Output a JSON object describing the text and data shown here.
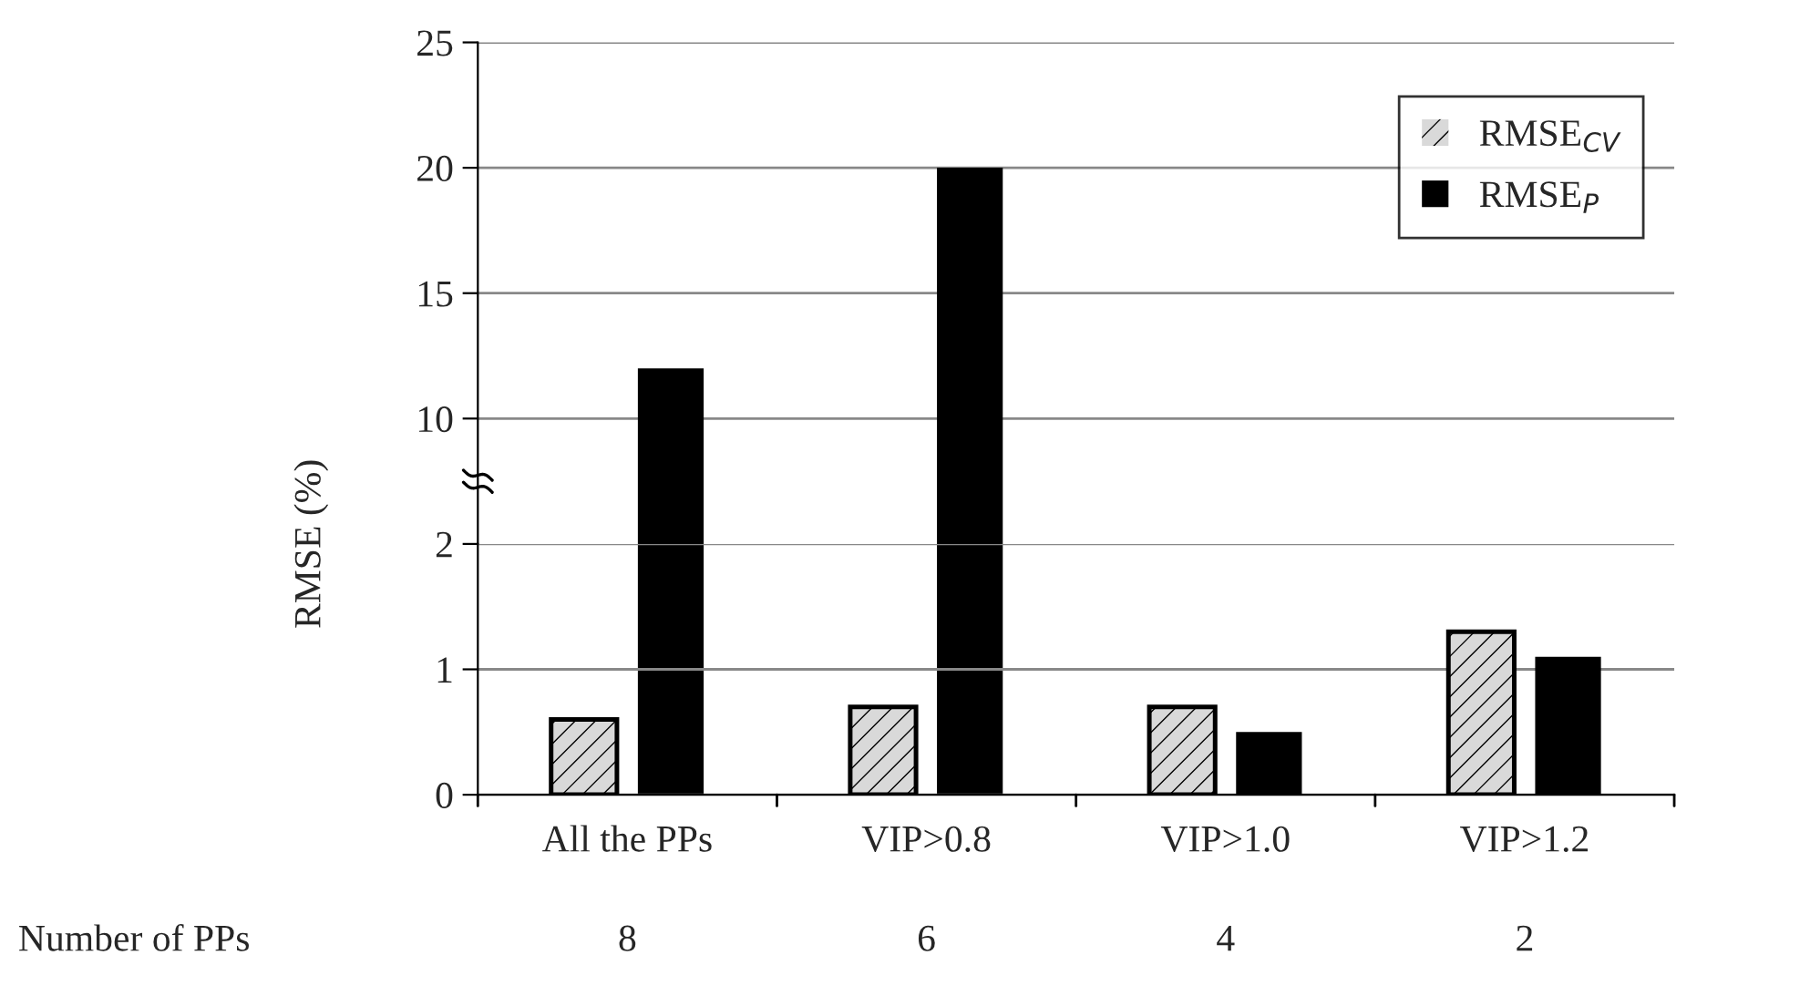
{
  "chart_data": [
    {
      "type": "bar",
      "categories": [
        null,
        null,
        null,
        null
      ],
      "series": [
        {
          "name": "RMSE$_{CV}$",
          "color": "#d9d9d9",
          "values": [
            null,
            null,
            null,
            null
          ]
        },
        {
          "name": "RMSE$_{P}$",
          "color": "#000000",
          "values": [
            12,
            20,
            null,
            null
          ]
        }
      ],
      "ylim": [
        5,
        25
      ],
      "yticks": [
        10,
        15,
        20,
        25
      ],
      "grid": "y",
      "legend": "top right",
      "tick_labels": "y"
    },
    {
      "type": "bar",
      "ylabel": "RMSE (%)",
      "categories": [
        "All the PPs",
        "VIP>0.8",
        "VIP>1.0",
        "VIP>1.2"
      ],
      "series": [
        {
          "color": "#d9d9d9",
          "values": [
            0.6,
            0.7,
            0.7,
            1.3
          ]
        },
        {
          "color": "#000000",
          "values": [
            null,
            null,
            0.5,
            1.1
          ]
        }
      ],
      "ylim": [
        0,
        2
      ],
      "yticks": [
        0,
        1,
        2
      ],
      "grid": "y",
      "annotations": [
        "Number of PPs",
        "8",
        "6",
        "4",
        "2"
      ]
    }
  ]
}
